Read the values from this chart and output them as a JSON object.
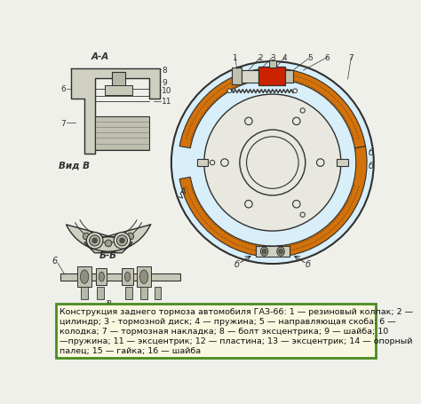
{
  "bg_color": "#f0f0eb",
  "main_diagram_bg": "#d8eef8",
  "outer_ring_color": "#d4720a",
  "line_color": "#303030",
  "text_color": "#101010",
  "red_block_color": "#cc2200",
  "spring_color": "#404040",
  "plate_border": "#4a8a20",
  "caption_bg": "#f8f8e0",
  "shoe_fill": "#c8c8b0",
  "metal_fill": "#d8d8c8",
  "dark_fill": "#888878",
  "caption_text_line1": "Конструкция заднего тормоза автомобиля ГАЗ-66: 1 — резиновый колпак; 2 —",
  "caption_text_line2": "цилиндр; 3 - тормозной диск; 4 — пружина; 5 — направляющая скоба: 6 —",
  "caption_text_line3": "колодка; 7 — тормозная накладка; 8 — болт эксцентрика; 9 — шайба; 10",
  "caption_text_line4": "—пружина; 11 — эксцентрик; 12 — пластина; 13 — эксцентрик; 14 — опорный",
  "caption_text_line5": "палец; 15 — гайка; 16 — шайба",
  "figsize": [
    4.74,
    4.56
  ],
  "dpi": 100
}
